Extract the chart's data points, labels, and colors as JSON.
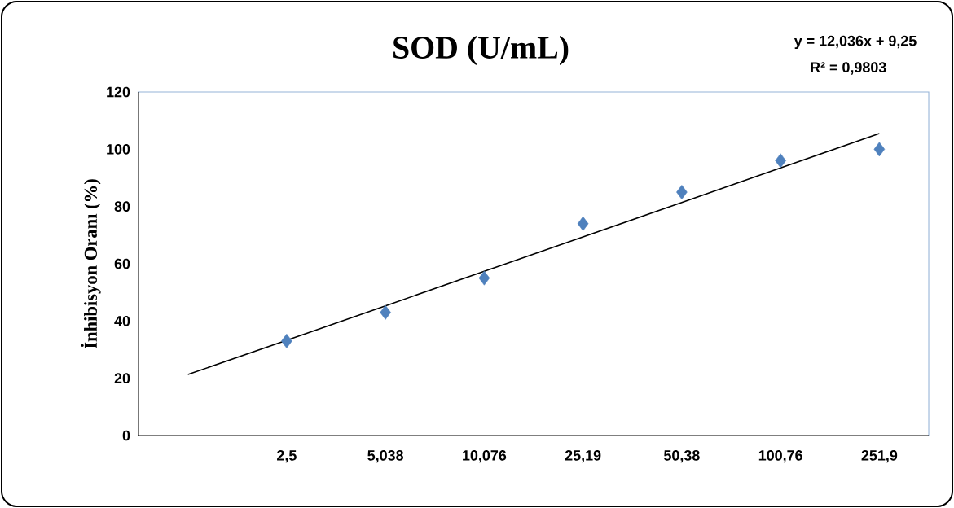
{
  "chart_data": {
    "type": "scatter",
    "title": "SOD (U/mL)",
    "ylabel": "İnhibisyon Oranı (%)",
    "annotations": [
      "y = 12,036x + 9,25",
      "R² = 0,9803"
    ],
    "categories": [
      null,
      "2,5",
      "5,038",
      "10,076",
      "25,19",
      "50,38",
      "100,76",
      "251,9"
    ],
    "ylim": [
      0,
      120
    ],
    "yticks": [
      0,
      20,
      40,
      60,
      80,
      100,
      120
    ],
    "marker": "diamond",
    "series": [
      {
        "color": "#4f81bd",
        "values": [
          null,
          33,
          43,
          55,
          74,
          85,
          96,
          100
        ]
      },
      {
        "type": "line",
        "color": "#000000",
        "marker": "none",
        "values": [
          21.3,
          33.3,
          45.3,
          57.4,
          69.4,
          81.4,
          93.5,
          105.5
        ]
      }
    ]
  }
}
